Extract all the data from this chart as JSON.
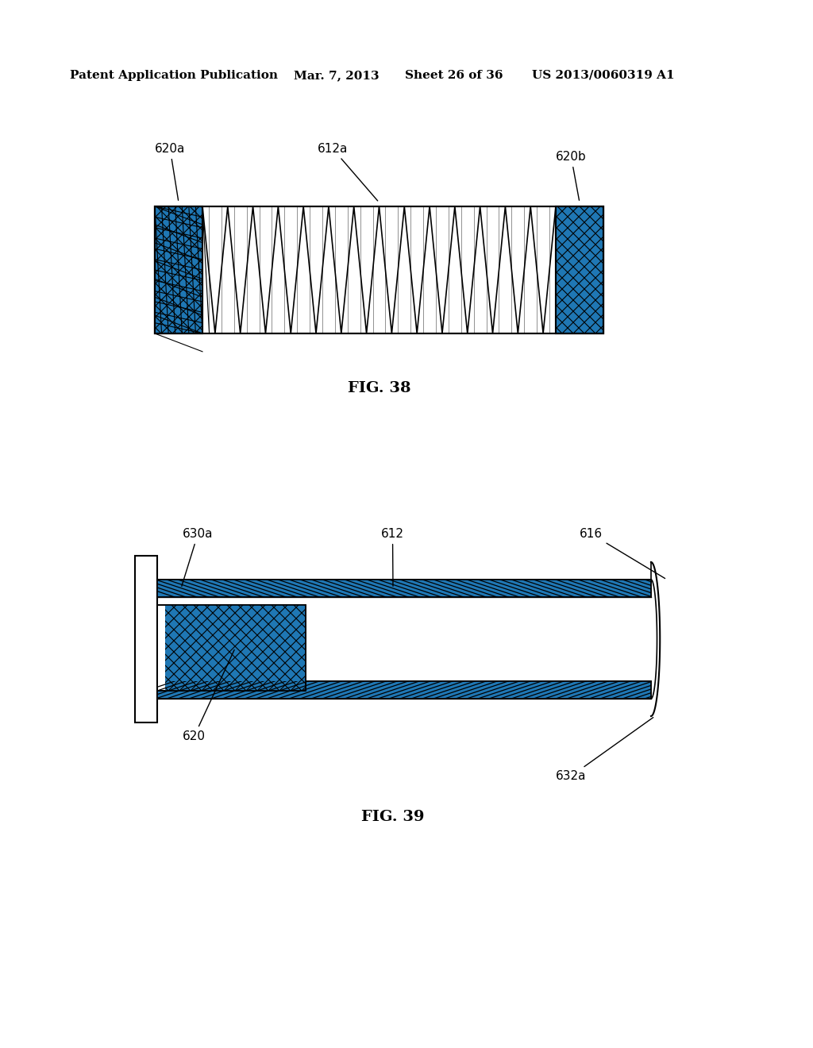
{
  "bg_color": "#ffffff",
  "header_text": "Patent Application Publication",
  "header_date": "Mar. 7, 2013",
  "header_sheet": "Sheet 26 of 36",
  "header_patent": "US 2013/0060319 A1",
  "fig38_caption": "FIG. 38",
  "fig39_caption": "FIG. 39",
  "fig38_labels": [
    "620a",
    "612a",
    "620b"
  ],
  "fig39_labels": [
    "630a",
    "612",
    "616",
    "620",
    "632a"
  ]
}
